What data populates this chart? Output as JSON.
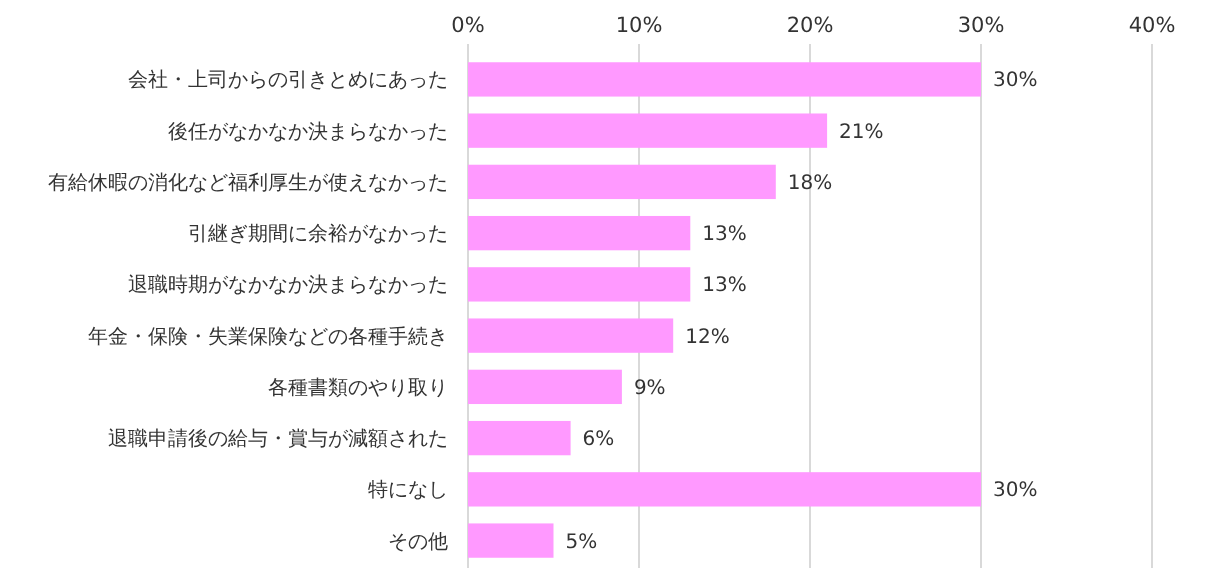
{
  "chart_data": {
    "type": "bar",
    "orientation": "horizontal",
    "categories": [
      "会社・上司からの引きとめにあった",
      "後任がなかなか決まらなかった",
      "有給休暇の消化など福利厚生が使えなかった",
      "引継ぎ期間に余裕がなかった",
      "退職時期がなかなか決まらなかった",
      "年金・保険・失業保険などの各種手続き",
      "各種書類のやり取り",
      "退職申請後の給与・賞与が減額された",
      "特になし",
      "その他"
    ],
    "values": [
      30,
      21,
      18,
      13,
      13,
      12,
      9,
      6,
      30,
      5
    ],
    "value_labels": [
      "30%",
      "21%",
      "18%",
      "13%",
      "13%",
      "12%",
      "9%",
      "6%",
      "30%",
      "5%"
    ],
    "color": "#ff99ff",
    "xlim": [
      0,
      40
    ],
    "xticks": [
      {
        "value": 0,
        "label": "0%"
      },
      {
        "value": 10,
        "label": "10%"
      },
      {
        "value": 20,
        "label": "20%"
      },
      {
        "value": 30,
        "label": "30%"
      },
      {
        "value": 40,
        "label": "40%"
      }
    ],
    "grid": "x"
  }
}
